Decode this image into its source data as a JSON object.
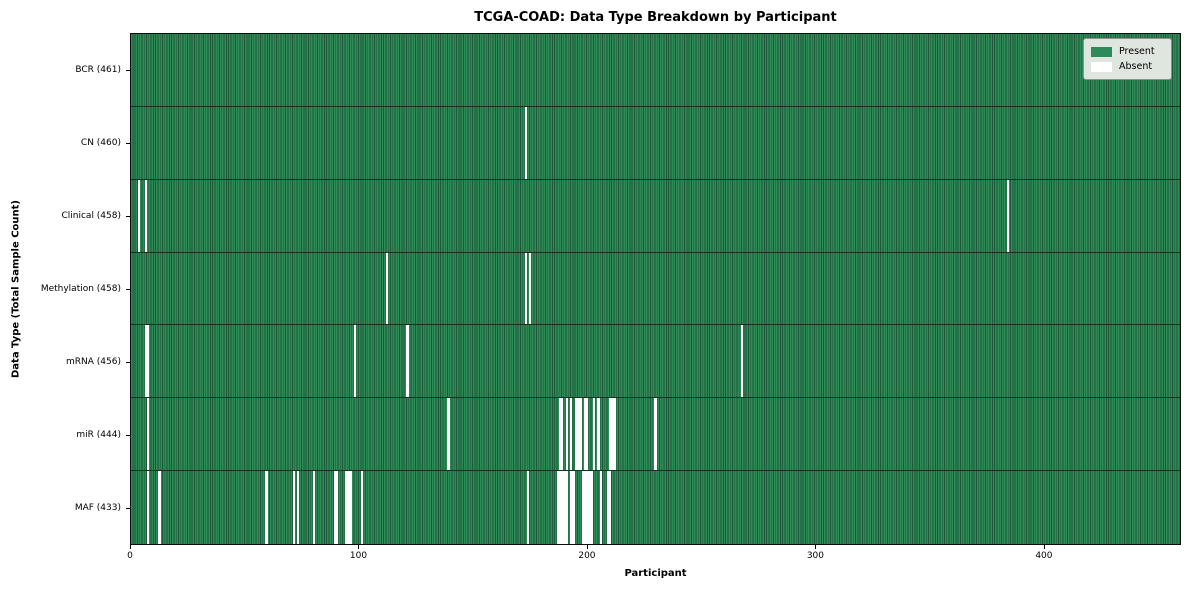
{
  "title": "TCGA-COAD: Data Type Breakdown by Participant",
  "axes": {
    "xlabel": "Participant",
    "ylabel": "Data Type (Total Sample Count)"
  },
  "legend": {
    "present_label": "Present",
    "absent_label": "Absent"
  },
  "colors": {
    "present": "#2e8b57",
    "present_edge": "#1d5a39",
    "absent": "#ffffff",
    "legend_bg": "#dfe6df",
    "row_separator": "#123324"
  },
  "chart_data": {
    "type": "heatmap",
    "title": "TCGA-COAD: Data Type Breakdown by Participant",
    "xlabel": "Participant",
    "ylabel": "Data Type (Total Sample Count)",
    "legend_entries": [
      "Present",
      "Absent"
    ],
    "legend_position": "upper right",
    "n_participants": 461,
    "xlim": [
      0,
      461
    ],
    "x_ticks": [
      0,
      100,
      200,
      300,
      400
    ],
    "value_encoding": {
      "present": "green cell",
      "absent": "white cell"
    },
    "rows": [
      {
        "name": "BCR",
        "label": "BCR (461)",
        "total": 461,
        "absent_participants": []
      },
      {
        "name": "CN",
        "label": "CN (460)",
        "total": 460,
        "absent_participants": [
          173
        ]
      },
      {
        "name": "Clinical",
        "label": "Clinical (458)",
        "total": 458,
        "absent_participants": [
          3,
          6,
          385
        ]
      },
      {
        "name": "Methylation",
        "label": "Methylation (458)",
        "total": 458,
        "absent_participants": [
          112,
          173,
          175
        ]
      },
      {
        "name": "mRNA",
        "label": "mRNA (456)",
        "total": 456,
        "absent_participants": [
          6,
          7,
          98,
          121,
          268
        ]
      },
      {
        "name": "miR",
        "label": "miR (444)",
        "total": 444,
        "absent_participants": [
          7,
          139,
          188,
          189,
          191,
          193,
          195,
          196,
          197,
          199,
          200,
          203,
          205,
          210,
          211,
          212,
          230
        ]
      },
      {
        "name": "MAF",
        "label": "MAF (433)",
        "total": 433,
        "absent_participants": [
          7,
          12,
          59,
          71,
          73,
          80,
          89,
          90,
          94,
          95,
          96,
          101,
          174,
          187,
          188,
          189,
          190,
          191,
          193,
          194,
          198,
          199,
          200,
          201,
          202,
          206,
          209,
          210
        ]
      }
    ]
  }
}
